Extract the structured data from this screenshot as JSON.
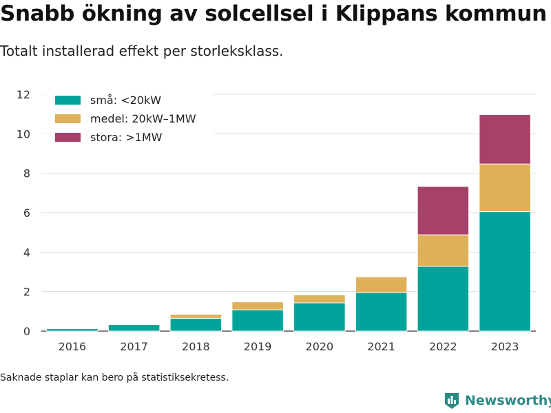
{
  "header": {
    "title": "Snabb ökning av solcellsel i Klippans kommun",
    "subtitle": "Totalt installerad effekt per storleksklass."
  },
  "footer": {
    "note": "Saknade staplar kan bero på statistiksekretess.",
    "brand": "Newsworthy",
    "logo_icon": "bar-chart-icon"
  },
  "chart_data": {
    "type": "bar",
    "stacked": true,
    "categories": [
      "2016",
      "2017",
      "2018",
      "2019",
      "2020",
      "2021",
      "2022",
      "2023"
    ],
    "series": [
      {
        "name": "små: <20kW",
        "color": "#00a399",
        "values": [
          0.12,
          0.33,
          0.65,
          1.08,
          1.43,
          1.95,
          3.28,
          6.05
        ]
      },
      {
        "name": "medel: 20kW–1MW",
        "color": "#dfb05a",
        "values": [
          0,
          0,
          0.2,
          0.4,
          0.4,
          0.8,
          1.6,
          2.42
        ]
      },
      {
        "name": "stora: >1MW",
        "color": "#a6416a",
        "values": [
          0,
          0,
          0,
          0,
          0,
          0,
          2.45,
          2.5
        ]
      }
    ],
    "ylim": [
      0,
      12
    ],
    "yticks": [
      0,
      2,
      4,
      6,
      8,
      10,
      12
    ],
    "grid": true,
    "legend_position": "top-left",
    "xlabel": "",
    "ylabel": ""
  },
  "colors": {
    "grid": "#dddddd",
    "axis": "#333333",
    "brand": "#2a8a86"
  }
}
